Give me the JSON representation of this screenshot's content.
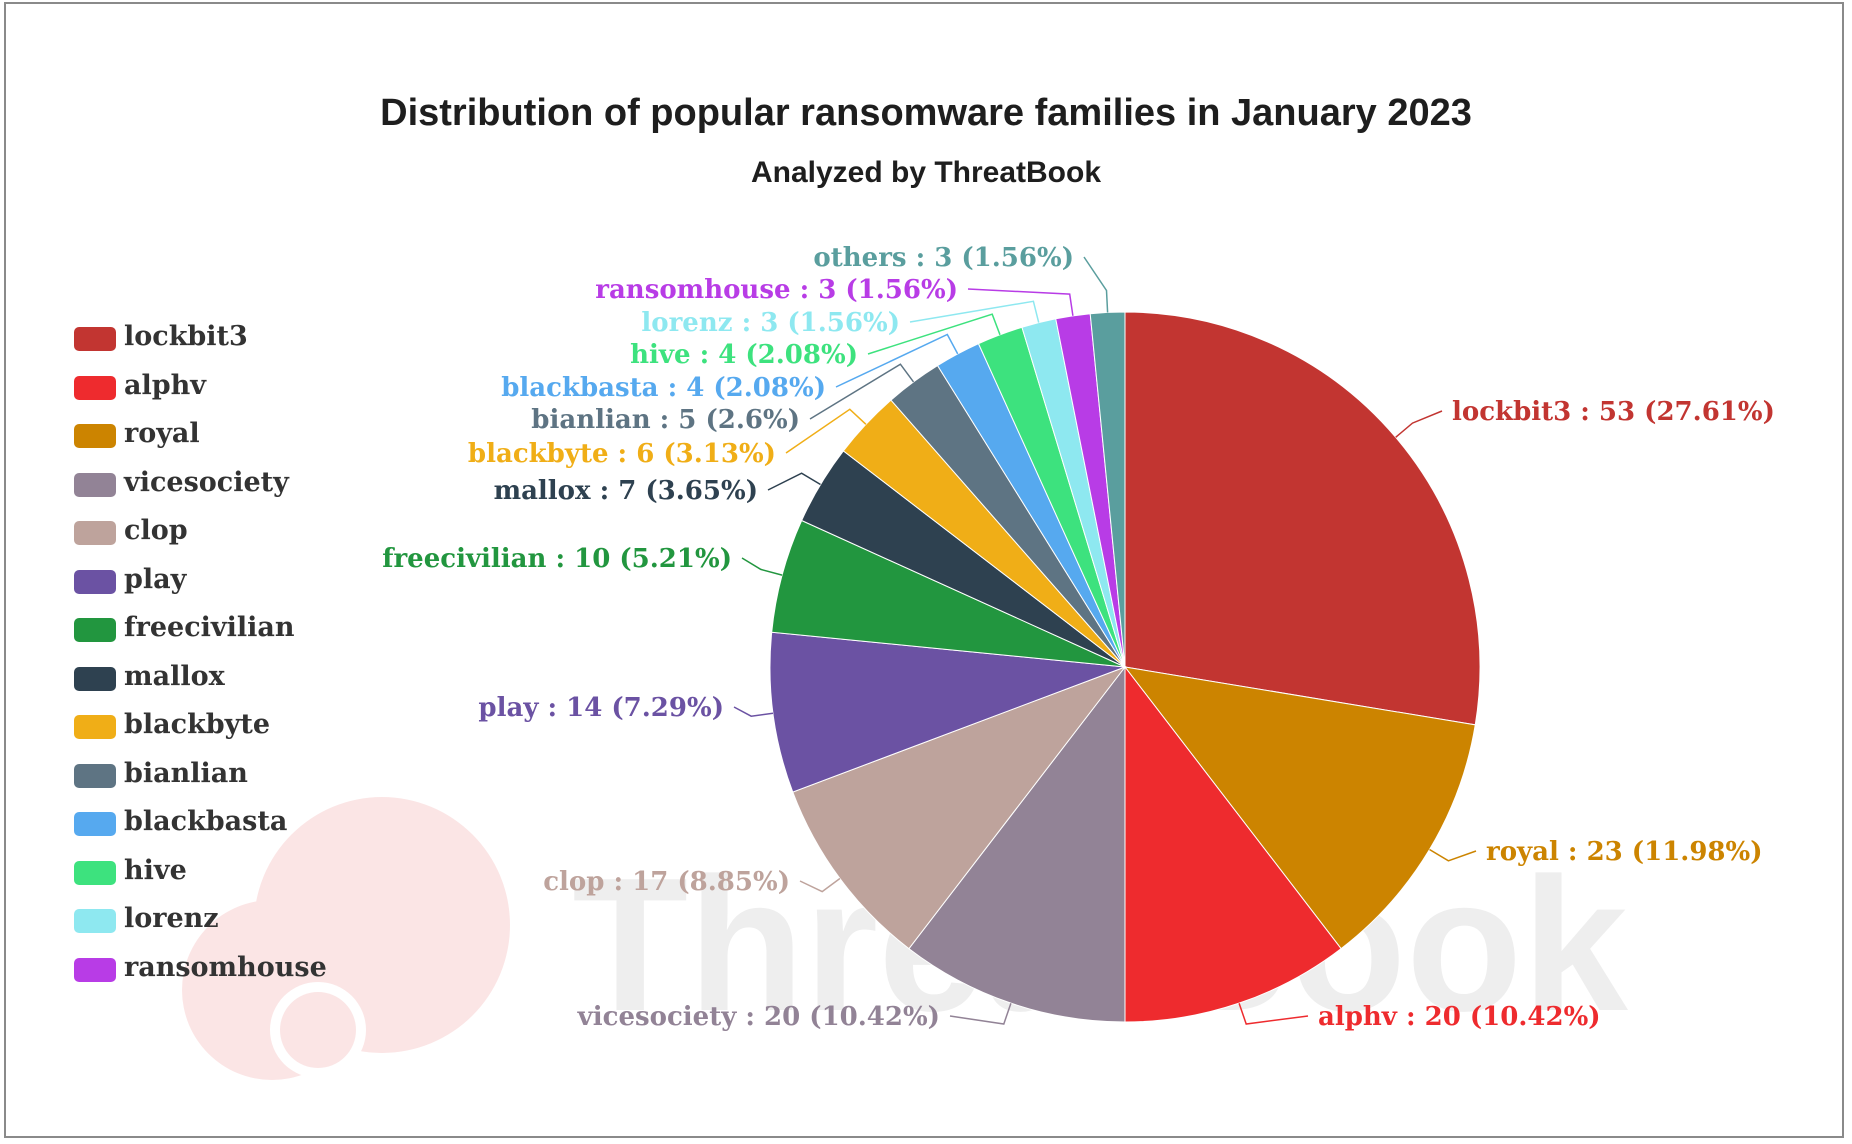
{
  "watermark": {
    "text": "ThreatBook",
    "color": "#eeeeee",
    "logo_color": "#fbe5e5"
  },
  "chart_data": {
    "type": "pie",
    "title": "Distribution of popular ransomware families in January 2023",
    "subtitle": "Analyzed by ThreatBook",
    "legend_position": "left",
    "slices": [
      {
        "name": "lockbit3",
        "value": 53,
        "percent": "27.61%",
        "color": "#c23531",
        "label": "lockbit3 : 53 (27.61%)"
      },
      {
        "name": "royal",
        "value": 23,
        "percent": "11.98%",
        "color": "#cc8400",
        "label": "royal : 23 (11.98%)"
      },
      {
        "name": "alphv",
        "value": 20,
        "percent": "10.42%",
        "color": "#ee2b2e",
        "label": "alphv : 20 (10.42%)"
      },
      {
        "name": "vicesociety",
        "value": 20,
        "percent": "10.42%",
        "color": "#928396",
        "label": "vicesociety : 20 (10.42%)"
      },
      {
        "name": "clop",
        "value": 17,
        "percent": "8.85%",
        "color": "#bea39c",
        "label": "clop : 17 (8.85%)"
      },
      {
        "name": "play",
        "value": 14,
        "percent": "7.29%",
        "color": "#6b52a3",
        "label": "play : 14 (7.29%)"
      },
      {
        "name": "freecivilian",
        "value": 10,
        "percent": "5.21%",
        "color": "#22963f",
        "label": "freecivilian : 10 (5.21%)"
      },
      {
        "name": "mallox",
        "value": 7,
        "percent": "3.65%",
        "color": "#2e4150",
        "label": "mallox : 7 (3.65%)"
      },
      {
        "name": "blackbyte",
        "value": 6,
        "percent": "3.13%",
        "color": "#f0ae17",
        "label": "blackbyte : 6 (3.13%)"
      },
      {
        "name": "bianlian",
        "value": 5,
        "percent": "2.6%",
        "color": "#5e7483",
        "label": "bianlian : 5 (2.6%)"
      },
      {
        "name": "blackbasta",
        "value": 4,
        "percent": "2.08%",
        "color": "#56a9ef",
        "label": "blackbasta : 4 (2.08%)"
      },
      {
        "name": "hive",
        "value": 4,
        "percent": "2.08%",
        "color": "#3de27e",
        "label": "hive : 4 (2.08%)"
      },
      {
        "name": "lorenz",
        "value": 3,
        "percent": "1.56%",
        "color": "#8ee8f0",
        "label": "lorenz : 3 (1.56%)"
      },
      {
        "name": "ransomhouse",
        "value": 3,
        "percent": "1.56%",
        "color": "#b83ce6",
        "label": "ransomhouse : 3 (1.56%)"
      },
      {
        "name": "others",
        "value": 3,
        "percent": "1.56%",
        "color": "#5a9e9e",
        "label": "others : 3 (1.56%)"
      }
    ],
    "legend": [
      "lockbit3",
      "alphv",
      "royal",
      "vicesociety",
      "clop",
      "play",
      "freecivilian",
      "mallox",
      "blackbyte",
      "bianlian",
      "blackbasta",
      "hive",
      "lorenz",
      "ransomhouse"
    ]
  }
}
